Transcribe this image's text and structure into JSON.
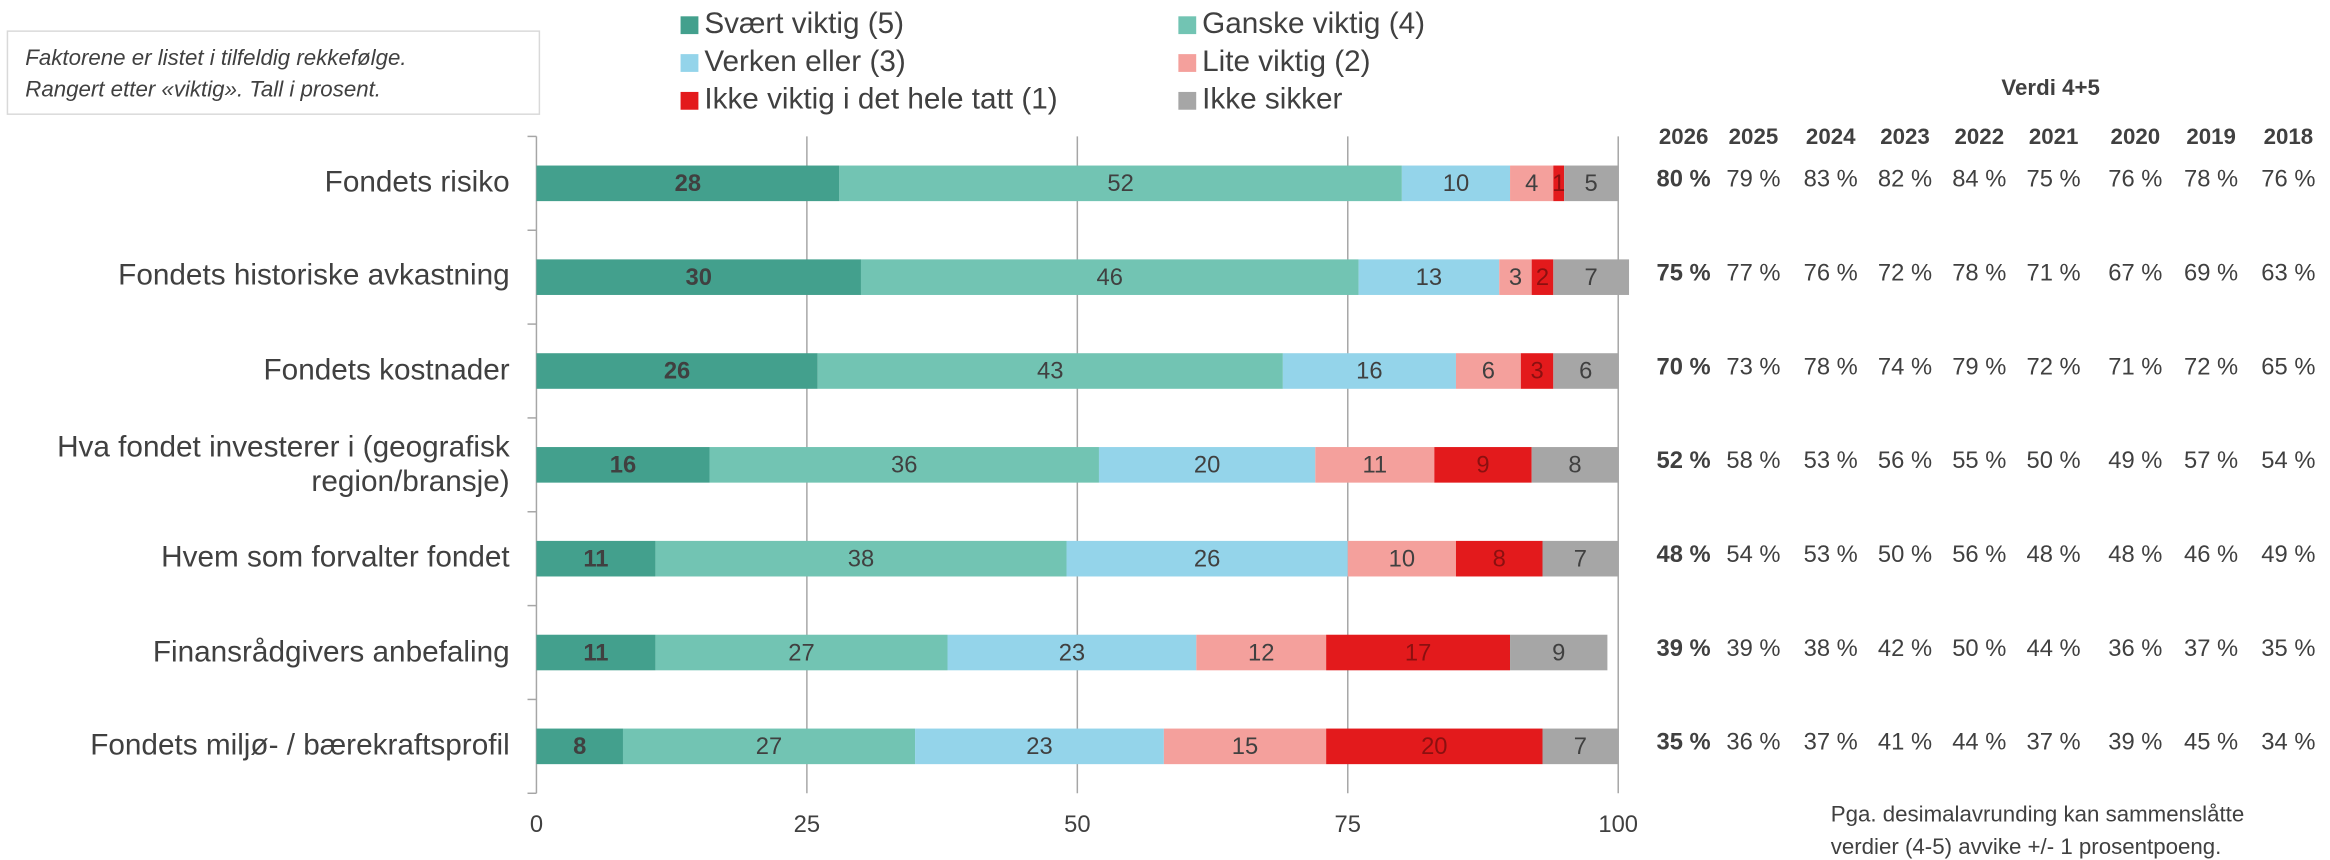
{
  "chart_data": {
    "type": "stacked-bar-horizontal",
    "note": [
      "Faktorene er listet i tilfeldig rekkefølge.",
      "Rangert etter «viktig». Tall i prosent."
    ],
    "categories": [
      "Fondets risiko",
      "Fondets historiske avkastning",
      "Fondets kostnader",
      "Hva fondet investerer i (geografisk region/bransje)",
      "Hvem som forvalter fondet",
      "Finansrådgivers anbefaling",
      "Fondets miljø- / bærekraftsprofil"
    ],
    "series": [
      {
        "name": "Svært viktig (5)",
        "color": "#43a08d",
        "values": [
          28,
          30,
          26,
          16,
          11,
          11,
          8
        ]
      },
      {
        "name": "Ganske viktig (4)",
        "color": "#72c4b3",
        "values": [
          52,
          46,
          43,
          36,
          38,
          27,
          27
        ]
      },
      {
        "name": "Verken eller (3)",
        "color": "#94d4ea",
        "values": [
          10,
          13,
          16,
          20,
          26,
          23,
          23
        ]
      },
      {
        "name": "Lite viktig (2)",
        "color": "#f4a09c",
        "values": [
          4,
          3,
          6,
          11,
          10,
          12,
          15
        ]
      },
      {
        "name": "Ikke viktig i det hele tatt (1)",
        "color": "#e31a1c",
        "values": [
          1,
          2,
          3,
          9,
          8,
          17,
          20
        ]
      },
      {
        "name": "Ikke sikker",
        "color": "#a6a6a6",
        "values": [
          5,
          7,
          6,
          8,
          7,
          9,
          7
        ]
      }
    ],
    "xlim": [
      0,
      100
    ],
    "xticks": [
      0,
      25,
      50,
      75,
      100
    ],
    "grid": true,
    "side_table": {
      "title": "Verdi 4+5",
      "columns": [
        "2026",
        "2025",
        "2024",
        "2023",
        "2022",
        "2021",
        "2020",
        "2019",
        "2018"
      ],
      "rows": [
        [
          "80 %",
          "79 %",
          "83 %",
          "82 %",
          "84 %",
          "75 %",
          "76 %",
          "78 %",
          "76 %"
        ],
        [
          "75 %",
          "77 %",
          "76 %",
          "72 %",
          "78 %",
          "71 %",
          "67 %",
          "69 %",
          "63 %"
        ],
        [
          "70 %",
          "73 %",
          "78 %",
          "74 %",
          "79 %",
          "72 %",
          "71 %",
          "72 %",
          "65 %"
        ],
        [
          "52 %",
          "58 %",
          "53 %",
          "56 %",
          "55 %",
          "50 %",
          "49 %",
          "57 %",
          "54 %"
        ],
        [
          "48 %",
          "54 %",
          "53 %",
          "50 %",
          "56 %",
          "48 %",
          "48 %",
          "46 %",
          "49 %"
        ],
        [
          "39 %",
          "39 %",
          "38 %",
          "42 %",
          "50 %",
          "44 %",
          "36 %",
          "37 %",
          "35 %"
        ],
        [
          "35 %",
          "36 %",
          "37 %",
          "41 %",
          "44 %",
          "37 %",
          "39 %",
          "45 %",
          "34 %"
        ]
      ]
    },
    "footnote": [
      "Pga. desimalavrunding kan sammenslåtte",
      "verdier (4-5) avvike +/- 1 prosentpoeng."
    ]
  }
}
